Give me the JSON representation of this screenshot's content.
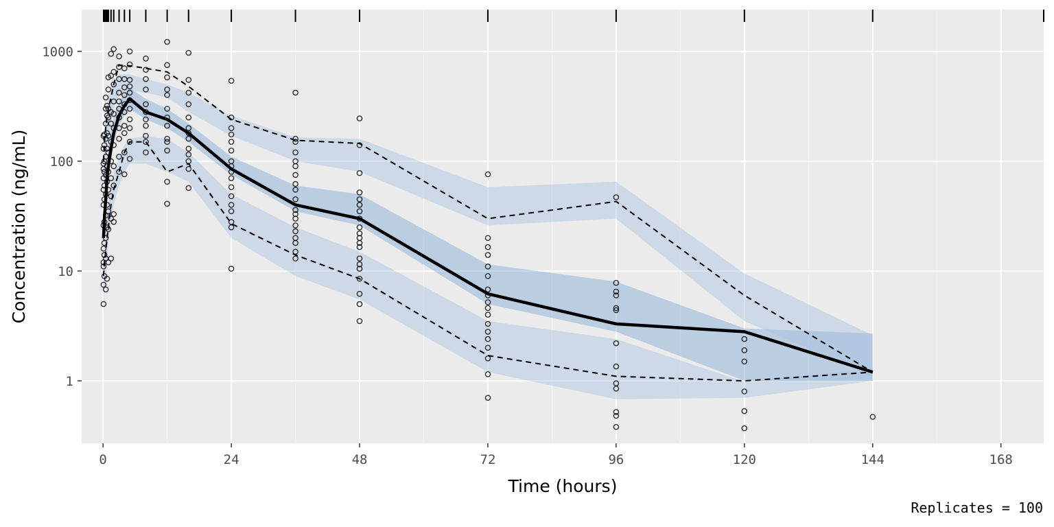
{
  "chart_data": {
    "type": "line",
    "title": "",
    "xlabel": "Time (hours)",
    "ylabel": "Concentration (ng/mL)",
    "caption": "Replicates = 100",
    "x_scale": "linear",
    "y_scale": "log10",
    "xlim": [
      -4,
      176
    ],
    "ylim": [
      0.27,
      2400
    ],
    "x_ticks": [
      0,
      24,
      48,
      72,
      96,
      120,
      144,
      168
    ],
    "x_tick_labels": [
      "0",
      "24",
      "48",
      "72",
      "96",
      "120",
      "144",
      "168"
    ],
    "y_ticks": [
      1,
      10,
      100,
      1000
    ],
    "y_tick_labels": [
      "1",
      "10",
      "100",
      "1000"
    ],
    "grid": true,
    "legend": "none",
    "bin_rug_x": [
      0.1,
      0.25,
      0.5,
      0.75,
      1,
      1.5,
      2,
      3,
      4,
      5,
      8,
      12,
      16,
      24,
      36,
      48,
      72,
      96,
      120,
      144,
      176
    ],
    "bins": [
      0.1,
      0.25,
      0.5,
      0.75,
      1,
      1.5,
      2,
      3,
      4,
      5,
      8,
      12,
      16,
      24,
      36,
      48,
      72,
      96,
      120,
      144
    ],
    "series": [
      {
        "name": "",
        "role": "observed median",
        "style": "solid",
        "values": [
          20,
          30,
          45,
          70,
          90,
          130,
          180,
          260,
          320,
          370,
          280,
          240,
          180,
          85,
          40,
          30,
          6.2,
          3.3,
          2.8,
          1.2
        ]
      },
      {
        "name": "",
        "role": "observed 5th percentile",
        "style": "dashed",
        "values": [
          9,
          12,
          15,
          20,
          25,
          40,
          55,
          80,
          120,
          150,
          150,
          80,
          95,
          27,
          14,
          8.5,
          1.7,
          1.1,
          1.0,
          1.2
        ]
      },
      {
        "name": "",
        "role": "observed 95th percentile",
        "style": "dashed",
        "values": [
          100,
          150,
          200,
          260,
          300,
          380,
          500,
          750,
          740,
          740,
          700,
          650,
          480,
          240,
          155,
          145,
          30,
          43,
          6,
          1.2
        ]
      }
    ],
    "bands": [
      {
        "role": "simulated median CI",
        "color": "#7fa9d4",
        "opacity": 0.45,
        "lower": [
          15,
          22,
          35,
          55,
          75,
          105,
          150,
          210,
          260,
          300,
          240,
          200,
          150,
          75,
          35,
          26,
          5.0,
          2.8,
          1.0,
          1.0
        ],
        "upper": [
          32,
          48,
          70,
          100,
          130,
          190,
          250,
          350,
          420,
          460,
          370,
          300,
          220,
          110,
          60,
          50,
          11.5,
          8.0,
          3.0,
          2.7
        ]
      },
      {
        "role": "simulated 5th percentile CI",
        "color": "#a9c4df",
        "opacity": 0.45,
        "lower": [
          4,
          6,
          8,
          12,
          18,
          28,
          40,
          60,
          80,
          95,
          95,
          80,
          65,
          20,
          9,
          5.5,
          1.2,
          0.68,
          0.7,
          1.0
        ],
        "upper": [
          10,
          14,
          20,
          30,
          42,
          60,
          80,
          110,
          140,
          160,
          170,
          160,
          120,
          50,
          25,
          15,
          3.5,
          2.4,
          0.98,
          1.3
        ]
      },
      {
        "role": "simulated 95th percentile CI",
        "color": "#a9c4df",
        "opacity": 0.45,
        "lower": [
          40,
          60,
          90,
          140,
          180,
          230,
          300,
          400,
          430,
          440,
          420,
          380,
          280,
          170,
          100,
          80,
          26,
          30,
          3.5,
          1.1
        ],
        "upper": [
          120,
          180,
          250,
          330,
          380,
          460,
          520,
          620,
          620,
          620,
          560,
          500,
          420,
          260,
          165,
          160,
          58,
          65,
          9.5,
          2.6
        ]
      }
    ],
    "points": [
      [
        0.1,
        5
      ],
      [
        0.1,
        7.5
      ],
      [
        0.1,
        11
      ],
      [
        0.1,
        12
      ],
      [
        0.1,
        16
      ],
      [
        0.1,
        26
      ],
      [
        0.1,
        40
      ],
      [
        0.1,
        55
      ],
      [
        0.1,
        70
      ],
      [
        0.1,
        85
      ],
      [
        0.1,
        95
      ],
      [
        0.1,
        130
      ],
      [
        0.1,
        170
      ],
      [
        0.25,
        9
      ],
      [
        0.25,
        14
      ],
      [
        0.25,
        18
      ],
      [
        0.25,
        28
      ],
      [
        0.25,
        45
      ],
      [
        0.25,
        60
      ],
      [
        0.25,
        80
      ],
      [
        0.25,
        100
      ],
      [
        0.25,
        140
      ],
      [
        0.25,
        175
      ],
      [
        0.5,
        6.8
      ],
      [
        0.5,
        13
      ],
      [
        0.5,
        20
      ],
      [
        0.5,
        32
      ],
      [
        0.5,
        50
      ],
      [
        0.5,
        75
      ],
      [
        0.5,
        110
      ],
      [
        0.5,
        160
      ],
      [
        0.5,
        220
      ],
      [
        0.5,
        300
      ],
      [
        0.5,
        380
      ],
      [
        0.75,
        8.5
      ],
      [
        0.75,
        25
      ],
      [
        0.75,
        40
      ],
      [
        0.75,
        65
      ],
      [
        0.75,
        90
      ],
      [
        0.75,
        130
      ],
      [
        0.75,
        180
      ],
      [
        0.75,
        260
      ],
      [
        0.75,
        320
      ],
      [
        1,
        12
      ],
      [
        1,
        24
      ],
      [
        1,
        35
      ],
      [
        1,
        55
      ],
      [
        1,
        80
      ],
      [
        1,
        120
      ],
      [
        1,
        170
      ],
      [
        1,
        250
      ],
      [
        1,
        300
      ],
      [
        1,
        450
      ],
      [
        1,
        580
      ],
      [
        1.5,
        13
      ],
      [
        1.5,
        30
      ],
      [
        1.5,
        48
      ],
      [
        1.5,
        70
      ],
      [
        1.5,
        100
      ],
      [
        1.5,
        150
      ],
      [
        1.5,
        220
      ],
      [
        1.5,
        280
      ],
      [
        1.5,
        600
      ],
      [
        1.5,
        950
      ],
      [
        2,
        28
      ],
      [
        2,
        33
      ],
      [
        2,
        60
      ],
      [
        2,
        90
      ],
      [
        2,
        140
      ],
      [
        2,
        200
      ],
      [
        2,
        270
      ],
      [
        2,
        350
      ],
      [
        2,
        500
      ],
      [
        2,
        650
      ],
      [
        2,
        1050
      ],
      [
        3,
        80
      ],
      [
        3,
        110
      ],
      [
        3,
        160
      ],
      [
        3,
        200
      ],
      [
        3,
        250
      ],
      [
        3,
        300
      ],
      [
        3,
        350
      ],
      [
        3,
        420
      ],
      [
        3,
        560
      ],
      [
        3,
        720
      ],
      [
        3,
        900
      ],
      [
        4,
        76
      ],
      [
        4,
        120
      ],
      [
        4,
        180
      ],
      [
        4,
        210
      ],
      [
        4,
        280
      ],
      [
        4,
        330
      ],
      [
        4,
        400
      ],
      [
        4,
        470
      ],
      [
        4,
        560
      ],
      [
        4,
        700
      ],
      [
        5,
        105
      ],
      [
        5,
        150
      ],
      [
        5,
        200
      ],
      [
        5,
        240
      ],
      [
        5,
        300
      ],
      [
        5,
        360
      ],
      [
        5,
        420
      ],
      [
        5,
        480
      ],
      [
        5,
        550
      ],
      [
        5,
        760
      ],
      [
        5,
        1000
      ],
      [
        8,
        120
      ],
      [
        8,
        150
      ],
      [
        8,
        170
      ],
      [
        8,
        210
      ],
      [
        8,
        240
      ],
      [
        8,
        280
      ],
      [
        8,
        330
      ],
      [
        8,
        450
      ],
      [
        8,
        560
      ],
      [
        8,
        680
      ],
      [
        8,
        860
      ],
      [
        12,
        41
      ],
      [
        12,
        65
      ],
      [
        12,
        125
      ],
      [
        12,
        150
      ],
      [
        12,
        160
      ],
      [
        12,
        210
      ],
      [
        12,
        250
      ],
      [
        12,
        300
      ],
      [
        12,
        400
      ],
      [
        12,
        450
      ],
      [
        12,
        580
      ],
      [
        12,
        750
      ],
      [
        12,
        1220
      ],
      [
        16,
        57
      ],
      [
        16,
        85
      ],
      [
        16,
        100
      ],
      [
        16,
        115
      ],
      [
        16,
        130
      ],
      [
        16,
        160
      ],
      [
        16,
        180
      ],
      [
        16,
        200
      ],
      [
        16,
        250
      ],
      [
        16,
        330
      ],
      [
        16,
        420
      ],
      [
        16,
        550
      ],
      [
        16,
        970
      ],
      [
        24,
        10.5
      ],
      [
        24,
        25
      ],
      [
        24,
        28
      ],
      [
        24,
        35
      ],
      [
        24,
        40
      ],
      [
        24,
        48
      ],
      [
        24,
        58
      ],
      [
        24,
        70
      ],
      [
        24,
        80
      ],
      [
        24,
        90
      ],
      [
        24,
        100
      ],
      [
        24,
        125
      ],
      [
        24,
        150
      ],
      [
        24,
        175
      ],
      [
        24,
        200
      ],
      [
        24,
        250
      ],
      [
        24,
        540
      ],
      [
        36,
        13
      ],
      [
        36,
        15
      ],
      [
        36,
        18
      ],
      [
        36,
        20
      ],
      [
        36,
        23
      ],
      [
        36,
        26
      ],
      [
        36,
        30
      ],
      [
        36,
        33
      ],
      [
        36,
        36
      ],
      [
        36,
        45
      ],
      [
        36,
        55
      ],
      [
        36,
        62
      ],
      [
        36,
        75
      ],
      [
        36,
        90
      ],
      [
        36,
        100
      ],
      [
        36,
        120
      ],
      [
        36,
        150
      ],
      [
        36,
        160
      ],
      [
        36,
        420
      ],
      [
        48,
        3.5
      ],
      [
        48,
        5
      ],
      [
        48,
        6.2
      ],
      [
        48,
        8.5
      ],
      [
        48,
        10.5
      ],
      [
        48,
        11.5
      ],
      [
        48,
        13
      ],
      [
        48,
        16.5
      ],
      [
        48,
        18
      ],
      [
        48,
        20
      ],
      [
        48,
        22
      ],
      [
        48,
        25
      ],
      [
        48,
        30
      ],
      [
        48,
        35
      ],
      [
        48,
        40
      ],
      [
        48,
        45
      ],
      [
        48,
        52
      ],
      [
        48,
        78
      ],
      [
        48,
        140
      ],
      [
        48,
        245
      ],
      [
        72,
        0.7
      ],
      [
        72,
        1.15
      ],
      [
        72,
        1.6
      ],
      [
        72,
        2.0
      ],
      [
        72,
        2.4
      ],
      [
        72,
        2.8
      ],
      [
        72,
        3.3
      ],
      [
        72,
        4.0
      ],
      [
        72,
        4.6
      ],
      [
        72,
        5.2
      ],
      [
        72,
        6.0
      ],
      [
        72,
        6.8
      ],
      [
        72,
        9.0
      ],
      [
        72,
        11
      ],
      [
        72,
        14
      ],
      [
        72,
        16.5
      ],
      [
        72,
        20
      ],
      [
        72,
        76
      ],
      [
        96,
        0.38
      ],
      [
        96,
        0.48
      ],
      [
        96,
        0.52
      ],
      [
        96,
        0.85
      ],
      [
        96,
        0.95
      ],
      [
        96,
        1.35
      ],
      [
        96,
        2.2
      ],
      [
        96,
        4.4
      ],
      [
        96,
        4.6
      ],
      [
        96,
        6.0
      ],
      [
        96,
        6.5
      ],
      [
        96,
        7.8
      ],
      [
        96,
        47
      ],
      [
        120,
        0.37
      ],
      [
        120,
        0.53
      ],
      [
        120,
        0.8
      ],
      [
        120,
        1.5
      ],
      [
        120,
        1.9
      ],
      [
        120,
        2.4
      ],
      [
        144,
        0.47
      ]
    ]
  }
}
